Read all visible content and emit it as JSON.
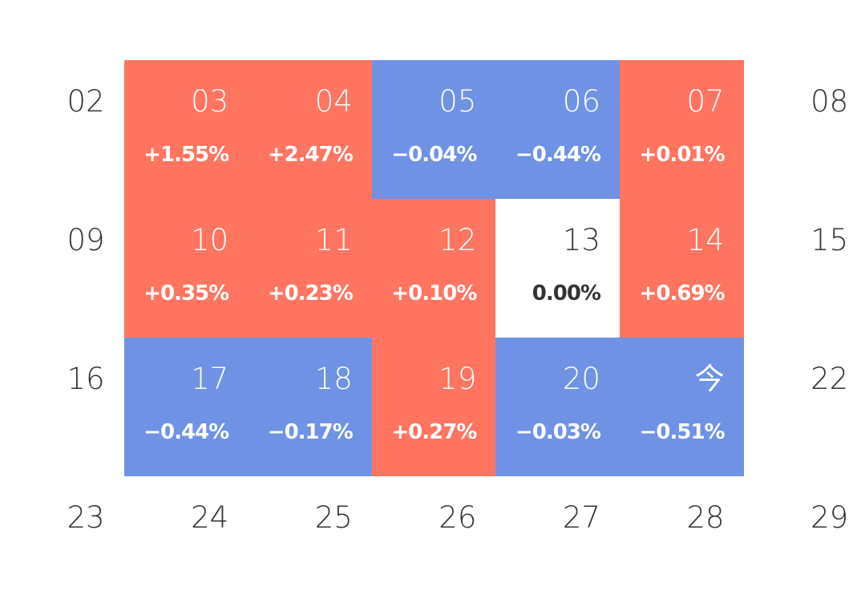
{
  "colors": {
    "up": "#ff7560",
    "down": "#6f92e5",
    "flat": "#ffffff"
  },
  "chart_data": {
    "type": "heatmap",
    "title": "",
    "columns": 7,
    "cells": [
      {
        "day": "02",
        "change": null
      },
      {
        "day": "03",
        "change": "+1.55%",
        "value": 1.55
      },
      {
        "day": "04",
        "change": "+2.47%",
        "value": 2.47
      },
      {
        "day": "05",
        "change": "−0.04%",
        "value": -0.04
      },
      {
        "day": "06",
        "change": "−0.44%",
        "value": -0.44
      },
      {
        "day": "07",
        "change": "+0.01%",
        "value": 0.01
      },
      {
        "day": "08",
        "change": null
      },
      {
        "day": "09",
        "change": null
      },
      {
        "day": "10",
        "change": "+0.35%",
        "value": 0.35
      },
      {
        "day": "11",
        "change": "+0.23%",
        "value": 0.23
      },
      {
        "day": "12",
        "change": "+0.10%",
        "value": 0.1
      },
      {
        "day": "13",
        "change": "0.00%",
        "value": 0
      },
      {
        "day": "14",
        "change": "+0.69%",
        "value": 0.69
      },
      {
        "day": "15",
        "change": null
      },
      {
        "day": "16",
        "change": null
      },
      {
        "day": "17",
        "change": "−0.44%",
        "value": -0.44
      },
      {
        "day": "18",
        "change": "−0.17%",
        "value": -0.17
      },
      {
        "day": "19",
        "change": "+0.27%",
        "value": 0.27
      },
      {
        "day": "20",
        "change": "−0.03%",
        "value": -0.03
      },
      {
        "day": "今",
        "change": "−0.51%",
        "value": -0.51
      },
      {
        "day": "22",
        "change": null
      },
      {
        "day": "23",
        "change": null
      },
      {
        "day": "24",
        "change": null
      },
      {
        "day": "25",
        "change": null
      },
      {
        "day": "26",
        "change": null
      },
      {
        "day": "27",
        "change": null
      },
      {
        "day": "28",
        "change": null
      },
      {
        "day": "29",
        "change": null
      }
    ]
  }
}
